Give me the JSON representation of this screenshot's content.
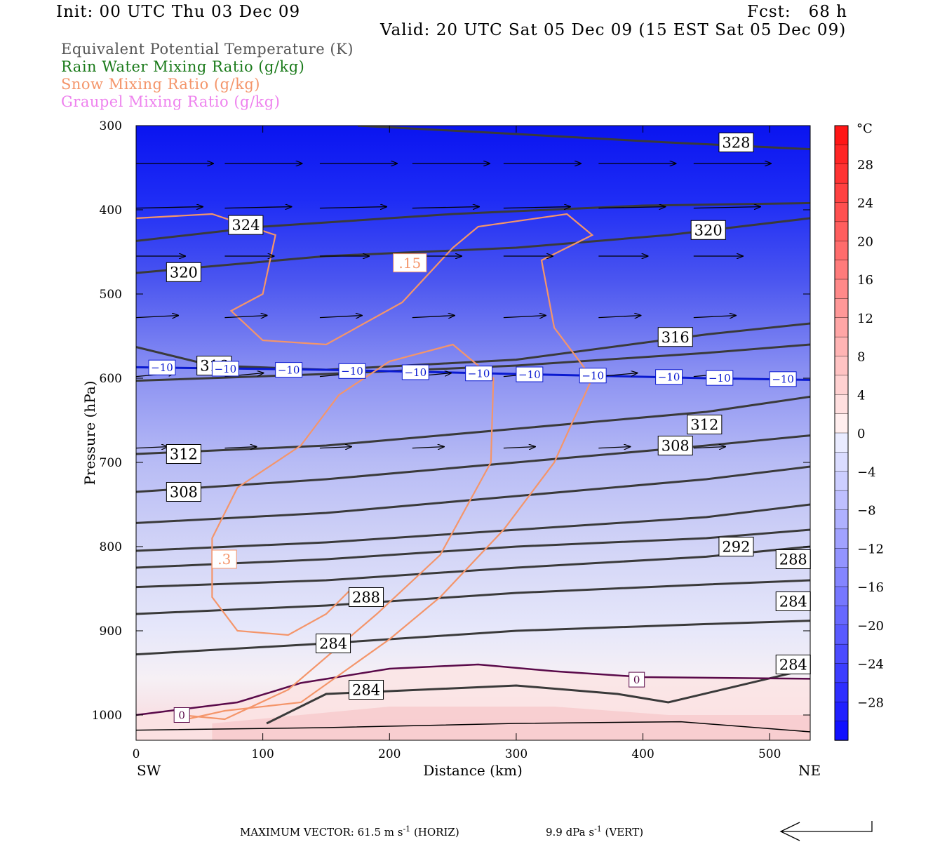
{
  "header": {
    "init": "Init: 00 UTC Thu 03 Dec 09",
    "fcst": "Fcst:   68 h",
    "valid": "Valid: 20 UTC Sat 05 Dec 09 (15 EST Sat 05 Dec 09)"
  },
  "legend": [
    {
      "label": "Equivalent Potential Temperature (K)",
      "color": "#555555"
    },
    {
      "label": "Rain Water Mixing Ratio (g/kg)",
      "color": "#1a7a1a"
    },
    {
      "label": "Snow Mixing Ratio (g/kg)",
      "color": "#f4956a"
    },
    {
      "label": "Graupel Mixing Ratio (g/kg)",
      "color": "#ee82ee"
    }
  ],
  "chart_data": {
    "type": "contour",
    "xlabel": "Distance (km)",
    "ylabel": "Pressure (hPa)",
    "x_ticks": [
      0,
      100,
      200,
      300,
      400,
      500
    ],
    "y_ticks": [
      300,
      400,
      500,
      600,
      700,
      800,
      900,
      1000
    ],
    "xlim": [
      0,
      532
    ],
    "ylim": [
      1030,
      300
    ],
    "left_end_label": "SW",
    "right_end_label": "NE",
    "colorbar": {
      "unit": "°C",
      "ticks": [
        28,
        24,
        20,
        16,
        12,
        8,
        4,
        0,
        -4,
        -8,
        -12,
        -16,
        -20,
        -24,
        -28
      ],
      "range": [
        -32,
        32
      ]
    },
    "theta_e_contours": [
      {
        "label": "328",
        "points": [
          [
            175,
            300
          ],
          [
            300,
            310
          ],
          [
            420,
            320
          ],
          [
            532,
            328
          ]
        ],
        "label_at": [
          460,
          320
        ]
      },
      {
        "label": "324",
        "points": [
          [
            0,
            437
          ],
          [
            100,
            420
          ],
          [
            250,
            405
          ],
          [
            400,
            395
          ],
          [
            532,
            392
          ]
        ],
        "label_at": [
          73,
          418
        ]
      },
      {
        "label": "320",
        "points": [
          [
            0,
            475
          ],
          [
            150,
            455
          ],
          [
            300,
            445
          ],
          [
            420,
            430
          ],
          [
            532,
            410
          ]
        ],
        "label_at": [
          24,
          474
        ],
        "label2": "320",
        "label2_at": [
          438,
          424
        ]
      },
      {
        "label": "316",
        "points": [
          [
            0,
            563
          ],
          [
            60,
            585
          ],
          [
            150,
            590
          ],
          [
            300,
            578
          ],
          [
            450,
            548
          ],
          [
            532,
            535
          ]
        ],
        "label_at": [
          48,
          585
        ],
        "label2": "316",
        "label2_at": [
          412,
          551
        ]
      },
      {
        "label": "",
        "points": [
          [
            0,
            603
          ],
          [
            150,
            595
          ],
          [
            300,
            585
          ],
          [
            450,
            570
          ],
          [
            532,
            560
          ]
        ]
      },
      {
        "label": "312",
        "points": [
          [
            0,
            690
          ],
          [
            150,
            680
          ],
          [
            300,
            660
          ],
          [
            450,
            640
          ],
          [
            532,
            622
          ]
        ],
        "label_at": [
          24,
          690
        ],
        "label2": "312",
        "label2_at": [
          435,
          655
        ]
      },
      {
        "label": "308",
        "points": [
          [
            0,
            735
          ],
          [
            150,
            720
          ],
          [
            300,
            700
          ],
          [
            450,
            680
          ],
          [
            532,
            668
          ]
        ],
        "label_at": [
          24,
          735
        ],
        "label2": "308",
        "label2_at": [
          412,
          680
        ]
      },
      {
        "label": "",
        "points": [
          [
            0,
            772
          ],
          [
            150,
            760
          ],
          [
            300,
            740
          ],
          [
            450,
            720
          ],
          [
            532,
            705
          ]
        ]
      },
      {
        "label": "292",
        "points": [
          [
            0,
            805
          ],
          [
            150,
            795
          ],
          [
            300,
            780
          ],
          [
            450,
            765
          ],
          [
            532,
            750
          ]
        ],
        "label_at": [
          460,
          800
        ]
      },
      {
        "label": "288",
        "points": [
          [
            0,
            825
          ],
          [
            150,
            815
          ],
          [
            300,
            800
          ],
          [
            450,
            790
          ],
          [
            532,
            780
          ]
        ],
        "label_at": [
          505,
          815
        ],
        "label2": "288",
        "label2_at": [
          168,
          860
        ]
      },
      {
        "label": "",
        "points": [
          [
            0,
            848
          ],
          [
            150,
            840
          ],
          [
            300,
            825
          ],
          [
            450,
            812
          ],
          [
            532,
            800
          ]
        ]
      },
      {
        "label": "284",
        "points": [
          [
            0,
            880
          ],
          [
            150,
            870
          ],
          [
            300,
            855
          ],
          [
            450,
            845
          ],
          [
            532,
            840
          ]
        ],
        "label_at": [
          505,
          865
        ],
        "label2": "284",
        "label2_at": [
          142,
          915
        ]
      },
      {
        "label": "",
        "points": [
          [
            0,
            928
          ],
          [
            150,
            915
          ],
          [
            300,
            900
          ],
          [
            450,
            892
          ],
          [
            532,
            888
          ]
        ]
      },
      {
        "label": "284",
        "points": [
          [
            103,
            1010
          ],
          [
            150,
            975
          ],
          [
            300,
            965
          ],
          [
            380,
            975
          ],
          [
            420,
            985
          ],
          [
            532,
            945
          ]
        ],
        "label_at": [
          168,
          970
        ],
        "label2": "284",
        "label2_at": [
          505,
          940
        ]
      }
    ],
    "isotherm_minus10": {
      "label": "-10",
      "points": [
        [
          0,
          587
        ],
        [
          150,
          590
        ],
        [
          300,
          595
        ],
        [
          450,
          600
        ],
        [
          532,
          602
        ]
      ]
    },
    "isotherm_zero": {
      "label": "0",
      "points": [
        [
          0,
          1000
        ],
        [
          80,
          985
        ],
        [
          130,
          962
        ],
        [
          200,
          945
        ],
        [
          270,
          940
        ],
        [
          330,
          948
        ],
        [
          400,
          955
        ],
        [
          532,
          957
        ]
      ],
      "label_at": [
        [
          30,
          1000
        ],
        [
          389,
          958
        ]
      ]
    },
    "snow_contours": [
      {
        "label": ".15",
        "points": [
          [
            0,
            410
          ],
          [
            60,
            405
          ],
          [
            110,
            430
          ],
          [
            100,
            500
          ],
          [
            75,
            520
          ],
          [
            100,
            555
          ],
          [
            150,
            560
          ],
          [
            210,
            510
          ],
          [
            250,
            445
          ],
          [
            270,
            420
          ],
          [
            340,
            405
          ],
          [
            360,
            430
          ],
          [
            320,
            460
          ],
          [
            330,
            540
          ],
          [
            360,
            600
          ],
          [
            330,
            700
          ],
          [
            290,
            780
          ],
          [
            240,
            860
          ],
          [
            200,
            910
          ],
          [
            130,
            985
          ],
          [
            70,
            995
          ],
          [
            40,
            1005
          ]
        ],
        "label_at": [
          203,
          463
        ]
      },
      {
        "label": ".3",
        "points": [
          [
            35,
            1000
          ],
          [
            70,
            1005
          ],
          [
            120,
            970
          ],
          [
            190,
            880
          ],
          [
            240,
            810
          ],
          [
            280,
            700
          ],
          [
            282,
            600
          ],
          [
            250,
            560
          ],
          [
            200,
            580
          ],
          [
            160,
            620
          ],
          [
            130,
            680
          ],
          [
            80,
            730
          ],
          [
            60,
            790
          ],
          [
            60,
            860
          ],
          [
            80,
            900
          ],
          [
            120,
            905
          ],
          [
            150,
            880
          ],
          [
            170,
            850
          ]
        ],
        "label_at": [
          60,
          815
        ]
      }
    ],
    "max_vector": {
      "text": "MAXIMUM VECTOR:  61.5 m s",
      "horiz_suffix": " (HORIZ)",
      "vert_text": "9.9 dPa s",
      "vert_suffix": " (VERT)",
      "exponent": "-1"
    }
  }
}
